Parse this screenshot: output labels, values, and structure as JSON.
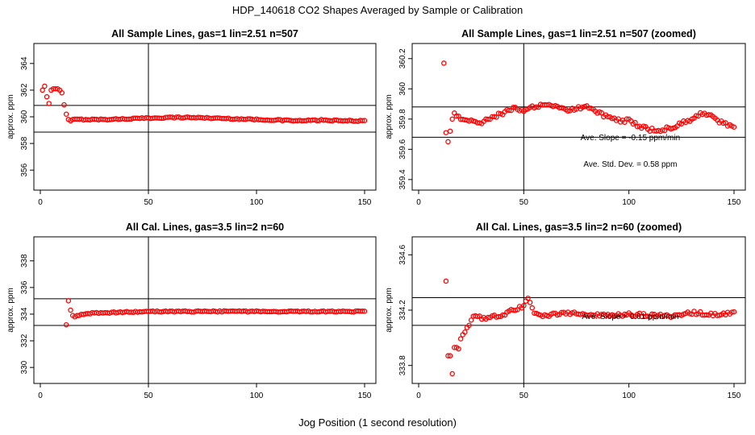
{
  "figure_title": "HDP_140618  CO2 Shapes Averaged by Sample or Calibration",
  "x_outer_label": "Jog Position (1 second resolution)",
  "colors": {
    "points": "#ff0000",
    "axes": "#000000"
  },
  "chart_data": [
    {
      "type": "scatter",
      "title": "All Sample Lines, gas=1 lin=2.51 n=507",
      "ylabel": "approx. ppm",
      "xlim": [
        0,
        150
      ],
      "ylim": [
        354.5,
        365.5
      ],
      "xticks": [
        0,
        50,
        100,
        150
      ],
      "yticks": [
        356,
        358,
        360,
        362,
        364
      ],
      "ytick_labels": [
        "356",
        "358",
        "360",
        "362",
        "364"
      ],
      "hlines": [
        360.85,
        358.85
      ],
      "vline": 50,
      "series_x_range": [
        1,
        150
      ],
      "anchors": [
        [
          1,
          362.0
        ],
        [
          2,
          362.3
        ],
        [
          3,
          361.5
        ],
        [
          4,
          361.0
        ],
        [
          5,
          362.0
        ],
        [
          6,
          362.1
        ],
        [
          7,
          362.1
        ],
        [
          8,
          362.1
        ],
        [
          9,
          362.0
        ],
        [
          10,
          361.8
        ],
        [
          11,
          360.9
        ],
        [
          12,
          360.2
        ],
        [
          13,
          359.8
        ],
        [
          14,
          359.7
        ],
        [
          15,
          359.8
        ],
        [
          20,
          359.8
        ],
        [
          30,
          359.8
        ],
        [
          40,
          359.85
        ],
        [
          50,
          359.9
        ],
        [
          60,
          359.95
        ],
        [
          70,
          359.95
        ],
        [
          80,
          359.9
        ],
        [
          90,
          359.85
        ],
        [
          100,
          359.8
        ],
        [
          110,
          359.75
        ],
        [
          120,
          359.7
        ],
        [
          130,
          359.75
        ],
        [
          140,
          359.7
        ],
        [
          150,
          359.7
        ]
      ],
      "annotations": []
    },
    {
      "type": "scatter",
      "title": "All Sample Lines, gas=1 lin=2.51 n=507 (zoomed)",
      "ylabel": "approx. ppm",
      "xlim": [
        0,
        150
      ],
      "ylim": [
        359.33,
        360.3
      ],
      "xticks": [
        0,
        50,
        100,
        150
      ],
      "yticks": [
        359.4,
        359.6,
        359.8,
        360.0,
        360.2
      ],
      "ytick_labels": [
        "359.4",
        "359.6",
        "359.8",
        "360",
        "360.2"
      ],
      "hlines": [
        359.88,
        359.68
      ],
      "vline": 50,
      "series_x_range": [
        12,
        150
      ],
      "anchors": [
        [
          12,
          360.17
        ],
        [
          13,
          359.71
        ],
        [
          14,
          359.65
        ],
        [
          15,
          359.72
        ],
        [
          16,
          359.8
        ],
        [
          17,
          359.84
        ],
        [
          18,
          359.82
        ],
        [
          20,
          359.8
        ],
        [
          25,
          359.79
        ],
        [
          30,
          359.78
        ],
        [
          35,
          359.81
        ],
        [
          40,
          359.84
        ],
        [
          45,
          359.87
        ],
        [
          50,
          359.86
        ],
        [
          55,
          359.88
        ],
        [
          60,
          359.89
        ],
        [
          65,
          359.88
        ],
        [
          70,
          359.86
        ],
        [
          75,
          359.87
        ],
        [
          80,
          359.88
        ],
        [
          85,
          359.85
        ],
        [
          90,
          359.81
        ],
        [
          95,
          359.79
        ],
        [
          100,
          359.79
        ],
        [
          105,
          359.75
        ],
        [
          110,
          359.73
        ],
        [
          115,
          359.73
        ],
        [
          120,
          359.74
        ],
        [
          125,
          359.77
        ],
        [
          130,
          359.8
        ],
        [
          135,
          359.84
        ],
        [
          140,
          359.81
        ],
        [
          145,
          359.77
        ],
        [
          150,
          359.74
        ]
      ],
      "annotations": [
        "Ave. Slope =  -0.15  ppm/min",
        "Ave. Std. Dev. =  0.58  ppm"
      ]
    },
    {
      "type": "scatter",
      "title": "All Cal. Lines, gas=3.5 lin=2 n=60",
      "ylabel": "approx. ppm",
      "xlim": [
        0,
        150
      ],
      "ylim": [
        328.8,
        339.8
      ],
      "xticks": [
        0,
        50,
        100,
        150
      ],
      "yticks": [
        330,
        332,
        334,
        336,
        338
      ],
      "ytick_labels": [
        "330",
        "332",
        "334",
        "336",
        "338"
      ],
      "hlines": [
        335.15,
        333.15
      ],
      "vline": 50,
      "series_x_range": [
        12,
        150
      ],
      "anchors": [
        [
          12,
          333.2
        ],
        [
          13,
          335.0
        ],
        [
          14,
          334.3
        ],
        [
          15,
          333.9
        ],
        [
          16,
          333.8
        ],
        [
          18,
          333.9
        ],
        [
          20,
          334.0
        ],
        [
          25,
          334.1
        ],
        [
          30,
          334.1
        ],
        [
          40,
          334.15
        ],
        [
          50,
          334.2
        ],
        [
          60,
          334.2
        ],
        [
          80,
          334.2
        ],
        [
          100,
          334.2
        ],
        [
          120,
          334.2
        ],
        [
          140,
          334.2
        ],
        [
          150,
          334.2
        ]
      ],
      "annotations": []
    },
    {
      "type": "scatter",
      "title": "All Cal. Lines, gas=3.5 lin=2 n=60 (zoomed)",
      "ylabel": "approx. ppm",
      "xlim": [
        0,
        150
      ],
      "ylim": [
        333.67,
        334.73
      ],
      "xticks": [
        0,
        50,
        100,
        150
      ],
      "yticks": [
        333.8,
        334.2,
        334.6
      ],
      "ytick_labels": [
        "333.8",
        "334.2",
        "334.6"
      ],
      "hlines": [
        334.29,
        334.09
      ],
      "vline": 50,
      "series_x_range": [
        13,
        150
      ],
      "anchors": [
        [
          13,
          334.41
        ],
        [
          14,
          333.87
        ],
        [
          15,
          333.87
        ],
        [
          16,
          333.74
        ],
        [
          17,
          333.93
        ],
        [
          18,
          333.93
        ],
        [
          19,
          333.92
        ],
        [
          20,
          334.0
        ],
        [
          22,
          334.05
        ],
        [
          25,
          334.12
        ],
        [
          27,
          334.17
        ],
        [
          30,
          334.14
        ],
        [
          35,
          334.15
        ],
        [
          40,
          334.17
        ],
        [
          45,
          334.2
        ],
        [
          50,
          334.23
        ],
        [
          52,
          334.29
        ],
        [
          55,
          334.19
        ],
        [
          60,
          334.16
        ],
        [
          70,
          334.18
        ],
        [
          80,
          334.17
        ],
        [
          90,
          334.16
        ],
        [
          100,
          334.17
        ],
        [
          110,
          334.16
        ],
        [
          120,
          334.16
        ],
        [
          130,
          334.18
        ],
        [
          140,
          334.17
        ],
        [
          150,
          334.18
        ]
      ],
      "annotations": [
        "Ave. Slope =  0.01  ppm/min"
      ]
    }
  ]
}
